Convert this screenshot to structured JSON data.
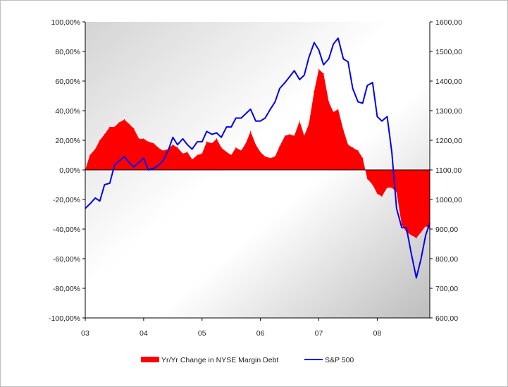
{
  "chart_data": {
    "type": "area+line",
    "title": "",
    "x_axis": {
      "tick_labels": [
        "03",
        "04",
        "05",
        "06",
        "07",
        "08"
      ],
      "range": [
        2003.0,
        2008.9
      ]
    },
    "y_left": {
      "range": [
        -100,
        100
      ],
      "ticks": [
        100,
        80,
        60,
        40,
        20,
        0,
        -20,
        -40,
        -60,
        -80,
        -100
      ],
      "tick_labels": [
        "100,00%",
        "80,00%",
        "60,00%",
        "40,00%",
        "20,00%",
        "0,00%",
        "-20,00%",
        "-40,00%",
        "-60,00%",
        "-80,00%",
        "-100,00%"
      ]
    },
    "y_right": {
      "range": [
        600,
        1600
      ],
      "ticks": [
        1600,
        1500,
        1400,
        1300,
        1200,
        1100,
        1000,
        900,
        800,
        700,
        600
      ],
      "tick_labels": [
        "1600,00",
        "1500,00",
        "1400,00",
        "1300,00",
        "1200,00",
        "1100,00",
        "1000,00",
        "900,00",
        "800,00",
        "700,00",
        "600,00"
      ]
    },
    "series": [
      {
        "name": "Yr/Yr Change in NYSE Margin Debt",
        "kind": "area",
        "axis": "left",
        "color": "#ff0000",
        "x": [
          2003.0,
          2003.08,
          2003.17,
          2003.25,
          2003.33,
          2003.42,
          2003.5,
          2003.58,
          2003.67,
          2003.75,
          2003.83,
          2003.92,
          2004.0,
          2004.08,
          2004.17,
          2004.25,
          2004.33,
          2004.42,
          2004.5,
          2004.58,
          2004.67,
          2004.75,
          2004.83,
          2004.92,
          2005.0,
          2005.08,
          2005.17,
          2005.25,
          2005.33,
          2005.42,
          2005.5,
          2005.58,
          2005.67,
          2005.75,
          2005.83,
          2005.92,
          2006.0,
          2006.08,
          2006.17,
          2006.25,
          2006.33,
          2006.42,
          2006.5,
          2006.58,
          2006.67,
          2006.75,
          2006.83,
          2006.92,
          2007.0,
          2007.08,
          2007.17,
          2007.25,
          2007.33,
          2007.42,
          2007.5,
          2007.58,
          2007.67,
          2007.75,
          2007.83,
          2007.92,
          2008.0,
          2008.08,
          2008.17,
          2008.25,
          2008.33,
          2008.42,
          2008.5,
          2008.58,
          2008.67,
          2008.75,
          2008.83,
          2008.9
        ],
        "values": [
          0,
          10,
          14,
          20,
          24,
          29,
          29,
          32,
          34,
          31,
          28,
          21,
          21,
          19,
          18,
          15,
          13,
          14,
          17,
          15,
          11,
          12,
          7,
          10,
          11,
          19,
          18,
          21,
          15,
          12,
          10,
          15,
          13,
          18,
          26,
          17,
          12,
          9,
          8,
          9,
          16,
          23,
          24,
          23,
          33,
          23,
          31,
          53,
          68,
          65,
          46,
          39,
          41,
          27,
          17,
          15,
          13,
          8,
          -6,
          -10,
          -16,
          -18,
          -12,
          -12,
          -15,
          -37,
          -42,
          -44,
          -46,
          -42,
          -38,
          -40
        ]
      },
      {
        "name": "S&P 500",
        "kind": "line",
        "axis": "right",
        "color": "#0000ee",
        "x": [
          2003.0,
          2003.08,
          2003.17,
          2003.25,
          2003.33,
          2003.42,
          2003.5,
          2003.58,
          2003.67,
          2003.75,
          2003.83,
          2003.92,
          2004.0,
          2004.08,
          2004.17,
          2004.25,
          2004.33,
          2004.42,
          2004.5,
          2004.58,
          2004.67,
          2004.75,
          2004.83,
          2004.92,
          2005.0,
          2005.08,
          2005.17,
          2005.25,
          2005.33,
          2005.42,
          2005.5,
          2005.58,
          2005.67,
          2005.75,
          2005.83,
          2005.92,
          2006.0,
          2006.08,
          2006.17,
          2006.25,
          2006.33,
          2006.42,
          2006.5,
          2006.58,
          2006.67,
          2006.75,
          2006.83,
          2006.92,
          2007.0,
          2007.08,
          2007.17,
          2007.25,
          2007.33,
          2007.42,
          2007.5,
          2007.58,
          2007.67,
          2007.75,
          2007.83,
          2007.92,
          2008.0,
          2008.08,
          2008.17,
          2008.25,
          2008.33,
          2008.42,
          2008.5,
          2008.58,
          2008.67,
          2008.75,
          2008.83,
          2008.9
        ],
        "values": [
          970,
          985,
          1005,
          995,
          1050,
          1055,
          1115,
          1130,
          1145,
          1125,
          1110,
          1125,
          1140,
          1100,
          1105,
          1115,
          1130,
          1165,
          1210,
          1185,
          1205,
          1185,
          1170,
          1195,
          1195,
          1230,
          1220,
          1225,
          1210,
          1245,
          1245,
          1275,
          1275,
          1290,
          1305,
          1265,
          1265,
          1275,
          1305,
          1330,
          1375,
          1395,
          1415,
          1435,
          1405,
          1420,
          1480,
          1530,
          1505,
          1455,
          1475,
          1525,
          1545,
          1475,
          1465,
          1375,
          1330,
          1325,
          1385,
          1395,
          1280,
          1265,
          1280,
          1160,
          970,
          905,
          905,
          820,
          735,
          800,
          880,
          920
        ]
      }
    ],
    "legend": {
      "placement": "bottom",
      "entries": [
        "Yr/Yr Change in NYSE Margin Debt",
        "S&P 500"
      ]
    }
  }
}
